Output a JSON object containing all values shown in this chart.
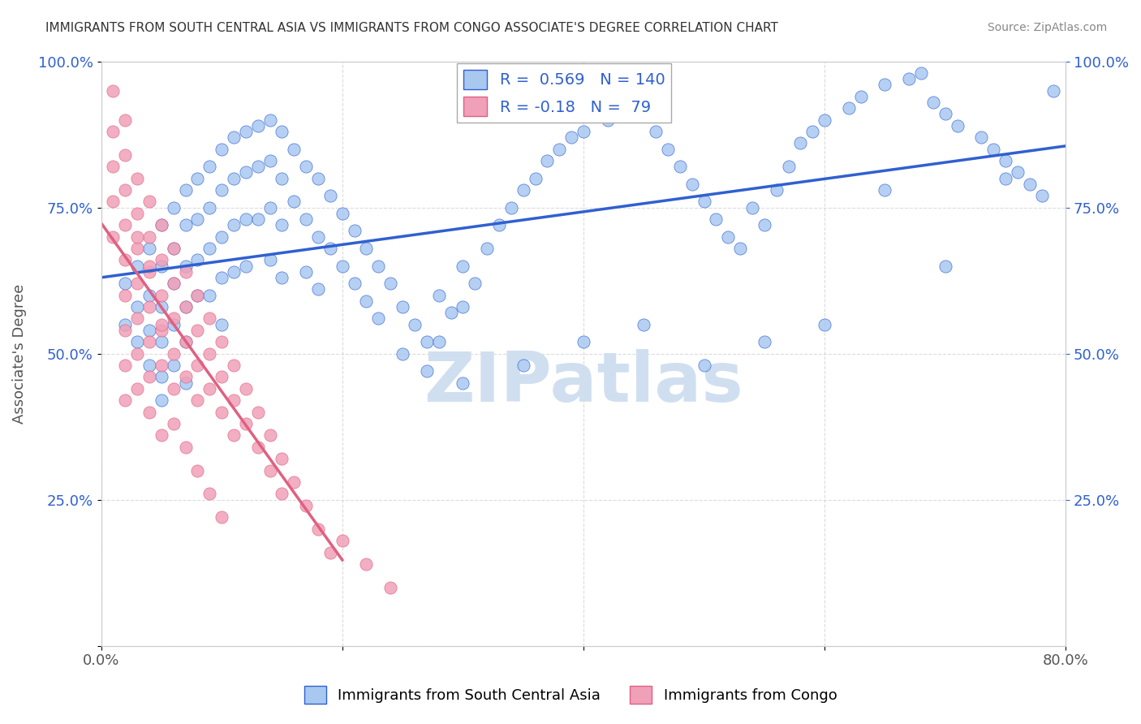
{
  "title": "IMMIGRANTS FROM SOUTH CENTRAL ASIA VS IMMIGRANTS FROM CONGO ASSOCIATE'S DEGREE CORRELATION CHART",
  "source": "Source: ZipAtlas.com",
  "xlabel": "",
  "ylabel": "Associate's Degree",
  "xlim": [
    0.0,
    0.8
  ],
  "ylim": [
    0.0,
    1.0
  ],
  "xticks": [
    0.0,
    0.2,
    0.4,
    0.6,
    0.8
  ],
  "xticklabels": [
    "0.0%",
    "",
    "",
    "",
    "80.0%"
  ],
  "yticks": [
    0.0,
    0.25,
    0.5,
    0.75,
    1.0
  ],
  "yticklabels": [
    "",
    "25.0%",
    "50.0%",
    "75.0%",
    "100.0%"
  ],
  "blue_R": 0.569,
  "blue_N": 140,
  "pink_R": -0.18,
  "pink_N": 79,
  "blue_color": "#a8c8f0",
  "pink_color": "#f0a0b8",
  "blue_line_color": "#3060d0",
  "pink_line_color": "#e06080",
  "watermark": "ZIPatlas",
  "watermark_color": "#d0dff0",
  "legend_label_blue": "Immigrants from South Central Asia",
  "legend_label_pink": "Immigrants from Congo",
  "blue_scatter_x": [
    0.02,
    0.02,
    0.03,
    0.03,
    0.03,
    0.04,
    0.04,
    0.04,
    0.04,
    0.05,
    0.05,
    0.05,
    0.05,
    0.05,
    0.05,
    0.06,
    0.06,
    0.06,
    0.06,
    0.06,
    0.07,
    0.07,
    0.07,
    0.07,
    0.07,
    0.07,
    0.08,
    0.08,
    0.08,
    0.08,
    0.09,
    0.09,
    0.09,
    0.09,
    0.1,
    0.1,
    0.1,
    0.1,
    0.1,
    0.11,
    0.11,
    0.11,
    0.11,
    0.12,
    0.12,
    0.12,
    0.12,
    0.13,
    0.13,
    0.13,
    0.14,
    0.14,
    0.14,
    0.14,
    0.15,
    0.15,
    0.15,
    0.15,
    0.16,
    0.16,
    0.17,
    0.17,
    0.17,
    0.18,
    0.18,
    0.18,
    0.19,
    0.19,
    0.2,
    0.2,
    0.21,
    0.21,
    0.22,
    0.22,
    0.23,
    0.23,
    0.24,
    0.25,
    0.25,
    0.26,
    0.27,
    0.27,
    0.28,
    0.28,
    0.29,
    0.3,
    0.3,
    0.31,
    0.32,
    0.33,
    0.34,
    0.35,
    0.36,
    0.37,
    0.38,
    0.39,
    0.4,
    0.42,
    0.43,
    0.45,
    0.46,
    0.47,
    0.48,
    0.49,
    0.5,
    0.51,
    0.52,
    0.53,
    0.54,
    0.55,
    0.56,
    0.57,
    0.58,
    0.59,
    0.6,
    0.62,
    0.63,
    0.65,
    0.67,
    0.68,
    0.69,
    0.7,
    0.71,
    0.73,
    0.74,
    0.75,
    0.76,
    0.77,
    0.78,
    0.79,
    0.6,
    0.65,
    0.7,
    0.75,
    0.3,
    0.35,
    0.4,
    0.45,
    0.5,
    0.55
  ],
  "blue_scatter_y": [
    0.62,
    0.55,
    0.65,
    0.58,
    0.52,
    0.68,
    0.6,
    0.54,
    0.48,
    0.72,
    0.65,
    0.58,
    0.52,
    0.46,
    0.42,
    0.75,
    0.68,
    0.62,
    0.55,
    0.48,
    0.78,
    0.72,
    0.65,
    0.58,
    0.52,
    0.45,
    0.8,
    0.73,
    0.66,
    0.6,
    0.82,
    0.75,
    0.68,
    0.6,
    0.85,
    0.78,
    0.7,
    0.63,
    0.55,
    0.87,
    0.8,
    0.72,
    0.64,
    0.88,
    0.81,
    0.73,
    0.65,
    0.89,
    0.82,
    0.73,
    0.9,
    0.83,
    0.75,
    0.66,
    0.88,
    0.8,
    0.72,
    0.63,
    0.85,
    0.76,
    0.82,
    0.73,
    0.64,
    0.8,
    0.7,
    0.61,
    0.77,
    0.68,
    0.74,
    0.65,
    0.71,
    0.62,
    0.68,
    0.59,
    0.65,
    0.56,
    0.62,
    0.58,
    0.5,
    0.55,
    0.52,
    0.47,
    0.6,
    0.52,
    0.57,
    0.65,
    0.58,
    0.62,
    0.68,
    0.72,
    0.75,
    0.78,
    0.8,
    0.83,
    0.85,
    0.87,
    0.88,
    0.9,
    0.91,
    0.92,
    0.88,
    0.85,
    0.82,
    0.79,
    0.76,
    0.73,
    0.7,
    0.68,
    0.75,
    0.72,
    0.78,
    0.82,
    0.86,
    0.88,
    0.9,
    0.92,
    0.94,
    0.96,
    0.97,
    0.98,
    0.93,
    0.91,
    0.89,
    0.87,
    0.85,
    0.83,
    0.81,
    0.79,
    0.77,
    0.95,
    0.55,
    0.78,
    0.65,
    0.8,
    0.45,
    0.48,
    0.52,
    0.55,
    0.48,
    0.52
  ],
  "pink_scatter_x": [
    0.01,
    0.01,
    0.01,
    0.01,
    0.02,
    0.02,
    0.02,
    0.02,
    0.02,
    0.02,
    0.02,
    0.02,
    0.03,
    0.03,
    0.03,
    0.03,
    0.03,
    0.03,
    0.03,
    0.04,
    0.04,
    0.04,
    0.04,
    0.04,
    0.04,
    0.04,
    0.05,
    0.05,
    0.05,
    0.05,
    0.05,
    0.05,
    0.06,
    0.06,
    0.06,
    0.06,
    0.06,
    0.07,
    0.07,
    0.07,
    0.07,
    0.08,
    0.08,
    0.08,
    0.08,
    0.09,
    0.09,
    0.09,
    0.1,
    0.1,
    0.1,
    0.11,
    0.11,
    0.11,
    0.12,
    0.12,
    0.13,
    0.13,
    0.14,
    0.14,
    0.15,
    0.15,
    0.16,
    0.17,
    0.18,
    0.19,
    0.2,
    0.22,
    0.24,
    0.06,
    0.07,
    0.08,
    0.09,
    0.1,
    0.04,
    0.05,
    0.03,
    0.02,
    0.01
  ],
  "pink_scatter_y": [
    0.88,
    0.82,
    0.76,
    0.7,
    0.84,
    0.78,
    0.72,
    0.66,
    0.6,
    0.54,
    0.48,
    0.42,
    0.8,
    0.74,
    0.68,
    0.62,
    0.56,
    0.5,
    0.44,
    0.76,
    0.7,
    0.64,
    0.58,
    0.52,
    0.46,
    0.4,
    0.72,
    0.66,
    0.6,
    0.54,
    0.48,
    0.36,
    0.68,
    0.62,
    0.56,
    0.5,
    0.44,
    0.64,
    0.58,
    0.52,
    0.46,
    0.6,
    0.54,
    0.48,
    0.42,
    0.56,
    0.5,
    0.44,
    0.52,
    0.46,
    0.4,
    0.48,
    0.42,
    0.36,
    0.44,
    0.38,
    0.4,
    0.34,
    0.36,
    0.3,
    0.32,
    0.26,
    0.28,
    0.24,
    0.2,
    0.16,
    0.18,
    0.14,
    0.1,
    0.38,
    0.34,
    0.3,
    0.26,
    0.22,
    0.65,
    0.55,
    0.7,
    0.9,
    0.95
  ]
}
